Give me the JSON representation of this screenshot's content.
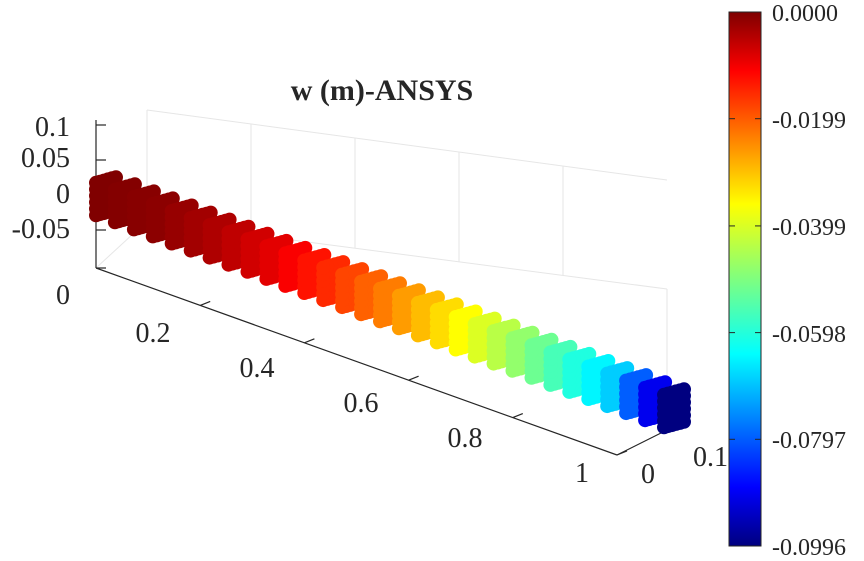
{
  "chart_data": {
    "type": "scatter",
    "subtype": "3d-scatter",
    "title": "w (m)-ANSYS",
    "xlabel": "",
    "ylabel": "",
    "zlabel": "",
    "x_ticks": [
      "0.2",
      "0.4",
      "0.6",
      "0.8",
      "1"
    ],
    "y_ticks": [
      "0",
      "0.1"
    ],
    "z_ticks": [
      "0.1",
      "0.05",
      "0",
      "-0.05"
    ],
    "extra_tick": "0",
    "x_range": [
      0,
      1
    ],
    "y_range": [
      0,
      0.1
    ],
    "z_range": [
      -0.05,
      0.1
    ],
    "grid": true,
    "colormap": "jet",
    "color_range": [
      -0.0996,
      0.0
    ],
    "colorbar": {
      "ticks": [
        "0.0000",
        "-0.0199",
        "-0.0399",
        "-0.0598",
        "-0.0797",
        "-0.0996"
      ],
      "values": [
        0.0,
        -0.0199,
        -0.0399,
        -0.0598,
        -0.0797,
        -0.0996
      ]
    },
    "series": [
      {
        "description": "cantilever beam nodes colored by vertical displacement w",
        "grid_size": {
          "nx": 31,
          "ny": 6,
          "nz": 6
        },
        "w_at_x": {
          "x": [
            0.0,
            0.1,
            0.2,
            0.3,
            0.4,
            0.5,
            0.6,
            0.7,
            0.8,
            0.9,
            1.0
          ],
          "w": [
            0.0,
            -0.0012,
            -0.0045,
            -0.0097,
            -0.0165,
            -0.0246,
            -0.0339,
            -0.0442,
            -0.0553,
            -0.0671,
            -0.0996
          ]
        }
      }
    ]
  },
  "colors": {
    "axis": "#262626",
    "grid": "#e6e6e6",
    "background": "#ffffff"
  }
}
